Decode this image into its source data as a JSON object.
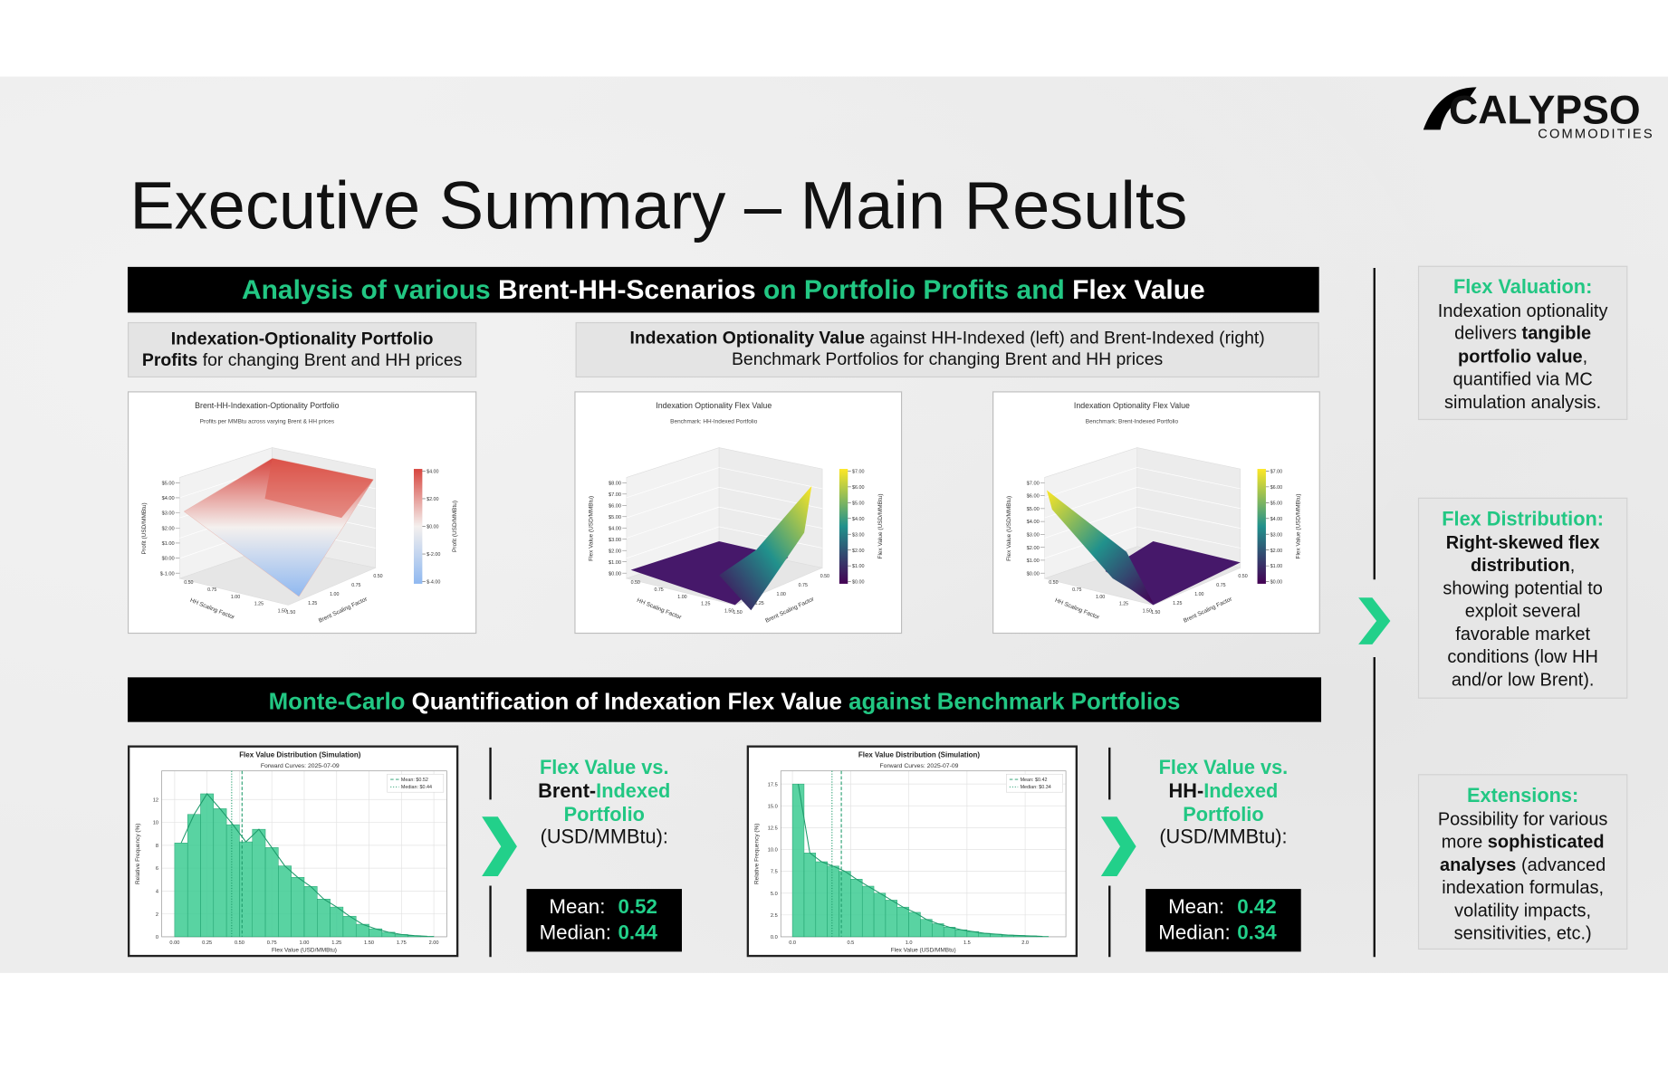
{
  "logo": {
    "name": "CALYPSO",
    "tagline": "COMMODITIES"
  },
  "title": "Executive Summary – Main Results",
  "banners": [
    [
      {
        "text": "Analysis of various ",
        "style": "accent"
      },
      {
        "text": "Brent-HH-Scenarios ",
        "style": "plain"
      },
      {
        "text": "on Portfolio Profits and ",
        "style": "accent"
      },
      {
        "text": "Flex Value",
        "style": "plain"
      }
    ],
    [
      {
        "text": "Monte-Carlo ",
        "style": "accent"
      },
      {
        "text": "Quantification of Indexation Flex Value ",
        "style": "plain"
      },
      {
        "text": "against Benchmark Portfolios",
        "style": "accent"
      }
    ]
  ],
  "panel_heads": [
    [
      [
        {
          "text": "Indexation-Optionality Portfolio",
          "style": "bold"
        }
      ],
      [
        {
          "text": "Profits",
          "style": "bold"
        },
        {
          "text": " for changing Brent and HH prices",
          "style": "plain"
        }
      ]
    ],
    [
      [
        {
          "text": "Indexation Optionality Value",
          "style": "bold"
        },
        {
          "text": " against HH-Indexed (left) and Brent-Indexed (right)",
          "style": "plain"
        }
      ],
      [
        {
          "text": "Benchmark Portfolios for changing Brent and HH prices",
          "style": "plain"
        }
      ]
    ]
  ],
  "surface_charts": [
    {
      "title": "Brent-HH-Indexation-Optionality Portfolio",
      "subtitle": "Profits per MMBtu across varying Brent & HH prices",
      "zlabel": "Profit (USD/MMBtu)",
      "xlabel": "HH Scaling Factor",
      "ylabel": "Brent Scaling Factor",
      "cbar_label": "Profit (USD/MMBtu)",
      "colormap": "coolwarm",
      "zticks": [
        {
          "value": -1,
          "label": "$-1.00"
        },
        {
          "value": 0,
          "label": "$0.00"
        },
        {
          "value": 1,
          "label": "$1.00"
        },
        {
          "value": 2,
          "label": "$2.00"
        },
        {
          "value": 3,
          "label": "$3.00"
        },
        {
          "value": 4,
          "label": "$4.00"
        },
        {
          "value": 5,
          "label": "$5.00"
        }
      ],
      "cbar_ticks": [
        {
          "value": -4,
          "label": "$-4.00"
        },
        {
          "value": -2,
          "label": "$-2.00"
        },
        {
          "value": 0,
          "label": "$0.00"
        },
        {
          "value": 2,
          "label": "$2.00"
        },
        {
          "value": 4,
          "label": "$4.00"
        }
      ],
      "xticks": [
        {
          "value": 0.5,
          "label": "0.50"
        },
        {
          "value": 0.75,
          "label": "0.75"
        },
        {
          "value": 1,
          "label": "1.00"
        },
        {
          "value": 1.25,
          "label": "1.25"
        },
        {
          "value": 1.5,
          "label": "1.50"
        }
      ],
      "yticks": [
        {
          "value": 1.5,
          "label": "1.50"
        },
        {
          "value": 1.25,
          "label": "1.25"
        },
        {
          "value": 1,
          "label": "1.00"
        },
        {
          "value": 0.75,
          "label": "0.75"
        },
        {
          "value": 0.5,
          "label": "0.50"
        }
      ]
    },
    {
      "title": "Indexation Optionality Flex Value",
      "subtitle": "Benchmark: HH-Indexed Portfolio",
      "zlabel": "Flex Value (USD/MMBtu)",
      "xlabel": "HH Scaling Factor",
      "ylabel": "Brent Scaling Factor",
      "cbar_label": "Flex Value (USD/MMBtu)",
      "colormap": "viridis",
      "zticks": [
        {
          "value": 0,
          "label": "$0.00"
        },
        {
          "value": 1,
          "label": "$1.00"
        },
        {
          "value": 2,
          "label": "$2.00"
        },
        {
          "value": 3,
          "label": "$3.00"
        },
        {
          "value": 4,
          "label": "$4.00"
        },
        {
          "value": 5,
          "label": "$5.00"
        },
        {
          "value": 6,
          "label": "$6.00"
        },
        {
          "value": 7,
          "label": "$7.00"
        },
        {
          "value": 8,
          "label": "$8.00"
        }
      ],
      "cbar_ticks": [
        {
          "value": 0,
          "label": "$0.00"
        },
        {
          "value": 1,
          "label": "$1.00"
        },
        {
          "value": 2,
          "label": "$2.00"
        },
        {
          "value": 3,
          "label": "$3.00"
        },
        {
          "value": 4,
          "label": "$4.00"
        },
        {
          "value": 5,
          "label": "$5.00"
        },
        {
          "value": 6,
          "label": "$6.00"
        },
        {
          "value": 7,
          "label": "$7.00"
        }
      ],
      "xticks": [
        {
          "value": 0.5,
          "label": "0.50"
        },
        {
          "value": 0.75,
          "label": "0.75"
        },
        {
          "value": 1,
          "label": "1.00"
        },
        {
          "value": 1.25,
          "label": "1.25"
        },
        {
          "value": 1.5,
          "label": "1.50"
        }
      ],
      "yticks": [
        {
          "value": 1.5,
          "label": "1.50"
        },
        {
          "value": 1.25,
          "label": "1.25"
        },
        {
          "value": 1,
          "label": "1.00"
        },
        {
          "value": 0.75,
          "label": "0.75"
        },
        {
          "value": 0.5,
          "label": "0.50"
        }
      ]
    },
    {
      "title": "Indexation Optionality Flex Value",
      "subtitle": "Benchmark: Brent-Indexed Portfolio",
      "zlabel": "Flex Value (USD/MMBtu)",
      "xlabel": "HH Scaling Factor",
      "ylabel": "Brent Scaling Factor",
      "cbar_label": "Flex Value (USD/MMBtu)",
      "colormap": "viridis",
      "zticks": [
        {
          "value": 0,
          "label": "$0.00"
        },
        {
          "value": 1,
          "label": "$1.00"
        },
        {
          "value": 2,
          "label": "$2.00"
        },
        {
          "value": 3,
          "label": "$3.00"
        },
        {
          "value": 4,
          "label": "$4.00"
        },
        {
          "value": 5,
          "label": "$5.00"
        },
        {
          "value": 6,
          "label": "$6.00"
        },
        {
          "value": 7,
          "label": "$7.00"
        }
      ],
      "cbar_ticks": [
        {
          "value": 0,
          "label": "$0.00"
        },
        {
          "value": 1,
          "label": "$1.00"
        },
        {
          "value": 2,
          "label": "$2.00"
        },
        {
          "value": 3,
          "label": "$3.00"
        },
        {
          "value": 4,
          "label": "$4.00"
        },
        {
          "value": 5,
          "label": "$5.00"
        },
        {
          "value": 6,
          "label": "$6.00"
        },
        {
          "value": 7,
          "label": "$7.00"
        }
      ],
      "xticks": [
        {
          "value": 0.5,
          "label": "0.50"
        },
        {
          "value": 0.75,
          "label": "0.75"
        },
        {
          "value": 1,
          "label": "1.00"
        },
        {
          "value": 1.25,
          "label": "1.25"
        },
        {
          "value": 1.5,
          "label": "1.50"
        }
      ],
      "yticks": [
        {
          "value": 1.5,
          "label": "1.50"
        },
        {
          "value": 1.25,
          "label": "1.25"
        },
        {
          "value": 1,
          "label": "1.00"
        },
        {
          "value": 0.75,
          "label": "0.75"
        },
        {
          "value": 0.5,
          "label": "0.50"
        }
      ]
    }
  ],
  "histograms": [
    {
      "type": "histogram",
      "title": "Flex Value Distribution (Simulation)",
      "subtitle": "Forward Curves: 2025-07-09",
      "xlabel": "Flex Value (USD/MMBtu)",
      "ylabel": "Relative Frequency (%)",
      "color": "#3ccb92",
      "grid": true,
      "bins": [
        0,
        0.1,
        0.2,
        0.3,
        0.4,
        0.5,
        0.6,
        0.7,
        0.8,
        0.9,
        1.0,
        1.1,
        1.2,
        1.3,
        1.4,
        1.5,
        1.6,
        1.7,
        1.8,
        1.9,
        2.0
      ],
      "values": [
        8.2,
        10.7,
        12.5,
        11.2,
        9.8,
        8.3,
        9.4,
        7.8,
        6.2,
        5.2,
        4.4,
        3.3,
        2.6,
        1.8,
        1.1,
        0.7,
        0.4,
        0.2,
        0.1,
        0.05
      ],
      "xlim": [
        -0.1,
        2.1
      ],
      "ylim": [
        0,
        14.5
      ],
      "xticks": [
        {
          "value": 0,
          "label": "0.00"
        },
        {
          "value": 0.25,
          "label": "0.25"
        },
        {
          "value": 0.5,
          "label": "0.50"
        },
        {
          "value": 0.75,
          "label": "0.75"
        },
        {
          "value": 1,
          "label": "1.00"
        },
        {
          "value": 1.25,
          "label": "1.25"
        },
        {
          "value": 1.5,
          "label": "1.50"
        },
        {
          "value": 1.75,
          "label": "1.75"
        },
        {
          "value": 2,
          "label": "2.00"
        }
      ],
      "yticks": [
        0,
        2,
        4,
        6,
        8,
        10,
        12
      ],
      "legend": [
        "Mean: $0.52",
        "Median: $0.44"
      ]
    },
    {
      "type": "histogram",
      "title": "Flex Value Distribution (Simulation)",
      "subtitle": "Forward Curves: 2025-07-09",
      "xlabel": "Flex Value (USD/MMBtu)",
      "ylabel": "Relative Frequency (%)",
      "color": "#3ccb92",
      "grid": true,
      "bins": [
        0,
        0.1,
        0.2,
        0.3,
        0.4,
        0.5,
        0.6,
        0.7,
        0.8,
        0.9,
        1.0,
        1.1,
        1.2,
        1.3,
        1.4,
        1.5,
        1.6,
        1.7,
        1.8,
        1.9,
        2.0,
        2.1,
        2.2
      ],
      "values": [
        17.5,
        9.6,
        8.6,
        8.1,
        7.5,
        6.6,
        5.8,
        5.0,
        4.2,
        3.4,
        2.8,
        2.0,
        1.5,
        1.1,
        0.8,
        0.6,
        0.4,
        0.3,
        0.2,
        0.15,
        0.1,
        0.05
      ],
      "xlim": [
        -0.1,
        2.35
      ],
      "ylim": [
        0,
        19
      ],
      "xticks": [
        {
          "value": 0,
          "label": "0.0"
        },
        0.5,
        {
          "value": 1,
          "label": "1.0"
        },
        1.5,
        {
          "value": 2,
          "label": "2.0"
        }
      ],
      "yticks": [
        {
          "value": 0,
          "label": "0.0"
        },
        2.5,
        {
          "value": 5,
          "label": "5.0"
        },
        7.5,
        {
          "value": 10,
          "label": "10.0"
        },
        12.5,
        {
          "value": 15,
          "label": "15.0"
        },
        17.5
      ],
      "legend": [
        "Mean: $0.42",
        "Median: $0.34"
      ]
    }
  ],
  "results": [
    {
      "lines": [
        [
          {
            "text": "Flex Value vs.",
            "style": "accent"
          }
        ],
        [
          {
            "text": "Brent-",
            "style": "bold"
          },
          {
            "text": "Indexed",
            "style": "accent"
          }
        ],
        [
          {
            "text": "Portfolio",
            "style": "accent"
          }
        ],
        [
          {
            "text": "(USD/MMBtu):",
            "style": "plain"
          }
        ]
      ],
      "mean_label": "Mean:",
      "mean": 0.52,
      "median_label": "Median:",
      "median": 0.44
    },
    {
      "lines": [
        [
          {
            "text": "Flex Value vs.",
            "style": "accent"
          }
        ],
        [
          {
            "text": "HH-",
            "style": "bold"
          },
          {
            "text": "Indexed",
            "style": "accent"
          }
        ],
        [
          {
            "text": "Portfolio",
            "style": "accent"
          }
        ],
        [
          {
            "text": "(USD/MMBtu):",
            "style": "plain"
          }
        ]
      ],
      "mean_label": "Mean:",
      "mean": 0.42,
      "median_label": "Median:",
      "median": 0.34
    }
  ],
  "sidebar": [
    [
      [
        {
          "text": "Flex Valuation:",
          "style": "accent"
        }
      ],
      [
        {
          "text": "Indexation optionality",
          "style": "plain"
        }
      ],
      [
        {
          "text": "delivers ",
          "style": "plain"
        },
        {
          "text": "tangible",
          "style": "bold"
        }
      ],
      [
        {
          "text": "portfolio value",
          "style": "bold"
        },
        {
          "text": ",",
          "style": "plain"
        }
      ],
      [
        {
          "text": "quantified via MC",
          "style": "plain"
        }
      ],
      [
        {
          "text": "simulation analysis.",
          "style": "plain"
        }
      ]
    ],
    [
      [
        {
          "text": "Flex Distribution:",
          "style": "accent"
        }
      ],
      [
        {
          "text": "Right-skewed flex",
          "style": "bold"
        }
      ],
      [
        {
          "text": "distribution",
          "style": "bold"
        },
        {
          "text": ",",
          "style": "plain"
        }
      ],
      [
        {
          "text": "showing potential to",
          "style": "plain"
        }
      ],
      [
        {
          "text": "exploit several",
          "style": "plain"
        }
      ],
      [
        {
          "text": "favorable market",
          "style": "plain"
        }
      ],
      [
        {
          "text": "conditions (low HH",
          "style": "plain"
        }
      ],
      [
        {
          "text": "and/or low Brent).",
          "style": "plain"
        }
      ]
    ],
    [
      [
        {
          "text": "Extensions:",
          "style": "accent"
        }
      ],
      [
        {
          "text": "Possibility for various",
          "style": "plain"
        }
      ],
      [
        {
          "text": "more ",
          "style": "plain"
        },
        {
          "text": "sophisticated",
          "style": "bold"
        }
      ],
      [
        {
          "text": "analyses",
          "style": "bold"
        },
        {
          "text": " (advanced",
          "style": "plain"
        }
      ],
      [
        {
          "text": "indexation formulas,",
          "style": "plain"
        }
      ],
      [
        {
          "text": "volatility impacts,",
          "style": "plain"
        }
      ],
      [
        {
          "text": "sensitivities, etc.)",
          "style": "plain"
        }
      ]
    ]
  ]
}
